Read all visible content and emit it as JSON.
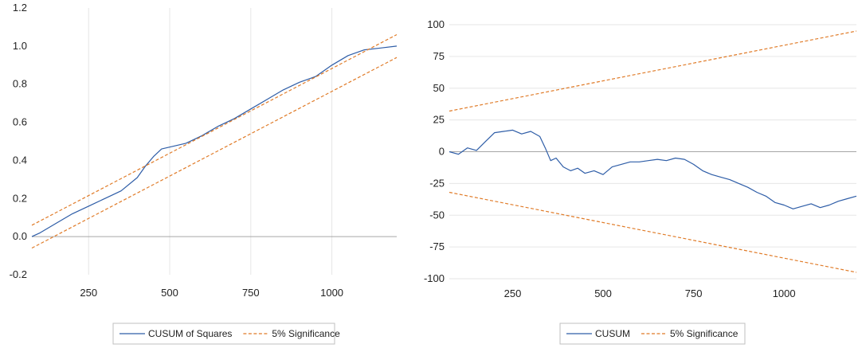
{
  "colors": {
    "series": "#2e5da7",
    "band": "#e07b28",
    "grid": "#e6e6e6",
    "zero": "#a6a6a6",
    "legend_border": "#bfbfbf"
  },
  "chart_data": [
    {
      "type": "line",
      "title": "",
      "xlabel": "",
      "ylabel": "",
      "xlim": [
        75,
        1200
      ],
      "ylim": [
        -0.2,
        1.2
      ],
      "x_ticks": [
        250,
        500,
        750,
        1000
      ],
      "y_ticks": [
        -0.2,
        0.0,
        0.2,
        0.4,
        0.6,
        0.8,
        1.0,
        1.2
      ],
      "x_tick_labels": [
        "250",
        "500",
        "750",
        "1000"
      ],
      "y_tick_labels": [
        "-0.2",
        "0.0",
        "0.2",
        "0.4",
        "0.6",
        "0.8",
        "1.0",
        "1.2"
      ],
      "grid": "vertical",
      "legend_position": "bottom",
      "series": [
        {
          "name": "CUSUM of Squares",
          "style": "solid",
          "color": "#2e5da7",
          "x": [
            75,
            100,
            150,
            200,
            250,
            300,
            350,
            400,
            425,
            450,
            475,
            500,
            550,
            600,
            650,
            700,
            750,
            800,
            850,
            900,
            950,
            1000,
            1050,
            1100,
            1150,
            1200
          ],
          "y": [
            0.0,
            0.02,
            0.07,
            0.12,
            0.16,
            0.2,
            0.24,
            0.31,
            0.37,
            0.42,
            0.46,
            0.47,
            0.49,
            0.53,
            0.58,
            0.62,
            0.67,
            0.72,
            0.77,
            0.81,
            0.84,
            0.9,
            0.95,
            0.98,
            0.99,
            1.0
          ]
        },
        {
          "name": "5% Significance",
          "style": "dashed",
          "color": "#e07b28",
          "x": [
            75,
            1200
          ],
          "y": [
            0.06,
            1.06
          ]
        },
        {
          "name": "",
          "style": "dashed",
          "color": "#e07b28",
          "x": [
            75,
            1200
          ],
          "y": [
            -0.06,
            0.94
          ]
        }
      ]
    },
    {
      "type": "line",
      "title": "",
      "xlabel": "",
      "ylabel": "",
      "xlim": [
        75,
        1200
      ],
      "ylim": [
        -100,
        100
      ],
      "x_ticks": [
        250,
        500,
        750,
        1000
      ],
      "y_ticks": [
        -100,
        -75,
        -50,
        -25,
        0,
        25,
        50,
        75,
        100
      ],
      "x_tick_labels": [
        "250",
        "500",
        "750",
        "1000"
      ],
      "y_tick_labels": [
        "-100",
        "-75",
        "-50",
        "-25",
        "0",
        "25",
        "50",
        "75",
        "100"
      ],
      "grid": "horizontal",
      "legend_position": "bottom",
      "series": [
        {
          "name": "CUSUM",
          "style": "solid",
          "color": "#2e5da7",
          "x": [
            75,
            100,
            125,
            150,
            175,
            200,
            225,
            250,
            275,
            300,
            325,
            340,
            355,
            370,
            390,
            410,
            430,
            450,
            475,
            500,
            525,
            550,
            575,
            600,
            625,
            650,
            675,
            700,
            725,
            750,
            775,
            800,
            825,
            850,
            875,
            900,
            925,
            950,
            975,
            1000,
            1025,
            1050,
            1075,
            1100,
            1125,
            1150,
            1175,
            1200
          ],
          "y": [
            0,
            -2,
            3,
            1,
            8,
            15,
            16,
            17,
            14,
            16,
            12,
            3,
            -7,
            -5,
            -12,
            -15,
            -13,
            -17,
            -15,
            -18,
            -12,
            -10,
            -8,
            -8,
            -7,
            -6,
            -7,
            -5,
            -6,
            -10,
            -15,
            -18,
            -20,
            -22,
            -25,
            -28,
            -32,
            -35,
            -40,
            -42,
            -45,
            -43,
            -41,
            -44,
            -42,
            -39,
            -37,
            -35
          ]
        },
        {
          "name": "5% Significance",
          "style": "dashed",
          "color": "#e07b28",
          "x": [
            75,
            1200
          ],
          "y": [
            32,
            95
          ]
        },
        {
          "name": "",
          "style": "dashed",
          "color": "#e07b28",
          "x": [
            75,
            1200
          ],
          "y": [
            -32,
            -95
          ]
        }
      ]
    }
  ]
}
